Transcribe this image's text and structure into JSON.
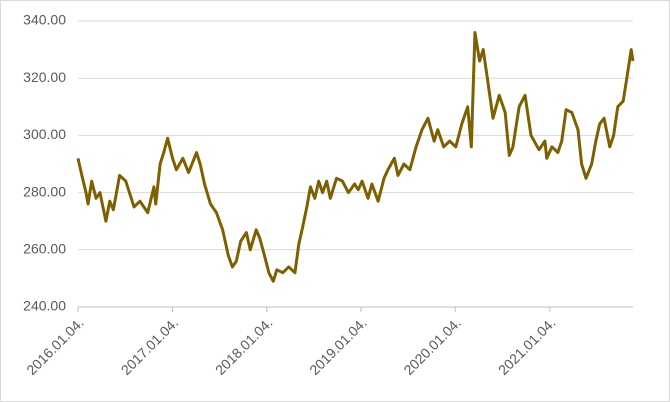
{
  "chart_data": {
    "type": "line",
    "x": [
      "2016.01.04.",
      "2016.01.19.",
      "2016.02.04.",
      "2016.02.12.",
      "2016.02.26.",
      "2016.03.14.",
      "2016.03.29.",
      "2016.04.21.",
      "2016.05.06.",
      "2016.05.20.",
      "2016.06.13.",
      "2016.07.07.",
      "2016.08.08.",
      "2016.08.31.",
      "2016.09.30.",
      "2016.10.24.",
      "2016.10.31.",
      "2016.11.17.",
      "2016.12.01.",
      "2016.12.16.",
      "2017.01.04.",
      "2017.01.19.",
      "2017.02.13.",
      "2017.03.07.",
      "2017.04.07.",
      "2017.04.21.",
      "2017.05.08.",
      "2017.05.31.",
      "2017.06.23.",
      "2017.07.17.",
      "2017.08.08.",
      "2017.08.24.",
      "2017.09.08.",
      "2017.09.25.",
      "2017.10.17.",
      "2017.11.01.",
      "2017.11.24.",
      "2017.12.08.",
      "2017.12.26.",
      "2018.01.12.",
      "2018.01.29.",
      "2018.02.12.",
      "2018.03.07.",
      "2018.03.30.",
      "2018.04.23.",
      "2018.05.08.",
      "2018.05.23.",
      "2018.06.08.",
      "2018.06.22.",
      "2018.07.09.",
      "2018.07.24.",
      "2018.08.08.",
      "2018.08.24.",
      "2018.09.07.",
      "2018.10.01.",
      "2018.10.24.",
      "2018.11.16.",
      "2018.12.10.",
      "2018.12.24.",
      "2019.01.08.",
      "2019.01.31.",
      "2019.02.15.",
      "2019.03.11.",
      "2019.04.03.",
      "2019.04.18.",
      "2019.05.13.",
      "2019.05.27.",
      "2019.06.19.",
      "2019.07.12.",
      "2019.08.05.",
      "2019.08.28.",
      "2019.09.20.",
      "2019.10.14.",
      "2019.10.28.",
      "2019.11.20.",
      "2019.12.13.",
      "2020.01.06.",
      "2020.01.29.",
      "2020.02.21.",
      "2020.03.06.",
      "2020.03.20.",
      "2020.04.07.",
      "2020.04.21.",
      "2020.05.07.",
      "2020.05.29.",
      "2020.06.22.",
      "2020.07.15.",
      "2020.07.31.",
      "2020.08.14.",
      "2020.09.07.",
      "2020.09.30.",
      "2020.10.23.",
      "2020.11.23.",
      "2020.12.16.",
      "2020.12.23.",
      "2021.01.12.",
      "2021.02.04.",
      "2021.02.19.",
      "2021.03.08.",
      "2021.03.30.",
      "2021.04.23.",
      "2021.05.07.",
      "2021.05.24.",
      "2021.06.15.",
      "2021.07.01.",
      "2021.07.16.",
      "2021.08.02.",
      "2021.08.24.",
      "2021.09.08.",
      "2021.09.24.",
      "2021.10.15.",
      "2021.10.29.",
      "2021.11.15.",
      "2021.11.22."
    ],
    "series": [
      {
        "color": "#7f6000",
        "values": [
          292,
          286,
          280,
          276,
          284,
          278,
          280,
          270,
          277,
          274,
          286,
          284,
          275,
          277,
          273,
          282,
          276,
          290,
          294,
          299,
          292,
          288,
          292,
          287,
          294,
          290,
          283,
          276,
          273,
          267,
          258,
          254,
          256,
          263,
          266,
          260,
          267,
          264,
          258,
          252,
          249,
          253,
          252,
          254,
          252,
          262,
          268,
          275,
          282,
          278,
          284,
          280,
          284,
          278,
          285,
          284,
          280,
          283,
          281,
          284,
          278,
          283,
          277,
          285,
          288,
          292,
          286,
          290,
          288,
          296,
          302,
          306,
          298,
          302,
          296,
          298,
          296,
          304,
          310,
          296,
          336,
          326,
          330,
          320,
          306,
          314,
          308,
          293,
          296,
          310,
          314,
          300,
          295,
          298,
          292,
          296,
          294,
          298,
          309,
          308,
          302,
          290,
          285,
          290,
          298,
          304,
          306,
          296,
          300,
          310,
          312,
          320,
          330,
          326
        ]
      }
    ],
    "xlim": [
      "2016.01.04.",
      "2021.11.22."
    ],
    "xticks": [
      "2016.01.04.",
      "2017.01.04.",
      "2018.01.04.",
      "2019.01.04.",
      "2020.01.04.",
      "2021.01.04."
    ],
    "ylim": [
      240,
      340
    ],
    "yticks": [
      {
        "value": 240,
        "label": "240.00"
      },
      {
        "value": 260,
        "label": "260.00"
      },
      {
        "value": 280,
        "label": "280.00"
      },
      {
        "value": 300,
        "label": "300.00"
      },
      {
        "value": 320,
        "label": "320.00"
      },
      {
        "value": 340,
        "label": "340.00"
      }
    ],
    "grid": true
  }
}
